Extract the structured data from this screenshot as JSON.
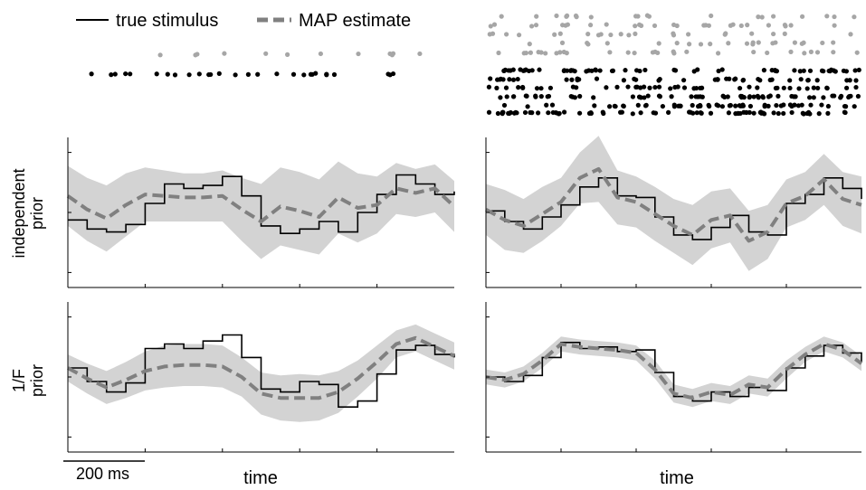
{
  "legend": [
    {
      "label": "true stimulus",
      "color": "#000000",
      "style": "solid"
    },
    {
      "label": "MAP estimate",
      "color": "#808080",
      "style": "dashed"
    }
  ],
  "row_labels": [
    {
      "line1": "independent",
      "line2": "prior"
    },
    {
      "line1": "1/F",
      "line2": "prior"
    }
  ],
  "xlabel": "time",
  "scalebar": {
    "label": "200 ms",
    "duration_ms": 200
  },
  "colors": {
    "band": "#d3d3d3",
    "map": "#808080",
    "true": "#000000",
    "spike_black": "#000000",
    "spike_gray": "#a6a6a6"
  },
  "chart_data": [
    {
      "type": "line",
      "panel": "independent prior, low spike rate",
      "x": [
        0,
        5,
        10,
        15,
        20,
        25,
        30,
        35,
        40,
        45,
        50,
        55,
        60,
        65,
        70,
        75,
        80,
        85,
        90,
        95,
        100
      ],
      "xlim": [
        0,
        100
      ],
      "ylim": [
        0,
        1
      ],
      "grid": false,
      "true": [
        0.45,
        0.39,
        0.37,
        0.42,
        0.56,
        0.69,
        0.66,
        0.68,
        0.74,
        0.61,
        0.41,
        0.36,
        0.39,
        0.44,
        0.37,
        0.5,
        0.62,
        0.75,
        0.69,
        0.62,
        0.64
      ],
      "map": [
        0.61,
        0.52,
        0.46,
        0.55,
        0.62,
        0.61,
        0.6,
        0.6,
        0.61,
        0.52,
        0.44,
        0.54,
        0.51,
        0.47,
        0.6,
        0.53,
        0.55,
        0.66,
        0.63,
        0.66,
        0.54
      ],
      "band_half": [
        0.2,
        0.21,
        0.22,
        0.21,
        0.18,
        0.17,
        0.16,
        0.16,
        0.17,
        0.21,
        0.25,
        0.26,
        0.26,
        0.25,
        0.24,
        0.23,
        0.19,
        0.17,
        0.16,
        0.16,
        0.17
      ]
    },
    {
      "type": "line",
      "panel": "independent prior, high spike rate",
      "x": [
        0,
        5,
        10,
        15,
        20,
        25,
        30,
        35,
        40,
        45,
        50,
        55,
        60,
        65,
        70,
        75,
        80,
        85,
        90,
        95,
        100
      ],
      "xlim": [
        0,
        100
      ],
      "ylim": [
        0,
        1
      ],
      "grid": false,
      "true": [
        0.51,
        0.44,
        0.39,
        0.47,
        0.55,
        0.67,
        0.73,
        0.61,
        0.6,
        0.47,
        0.35,
        0.32,
        0.4,
        0.48,
        0.37,
        0.35,
        0.56,
        0.62,
        0.73,
        0.66,
        0.59
      ],
      "map": [
        0.52,
        0.45,
        0.41,
        0.49,
        0.57,
        0.73,
        0.79,
        0.6,
        0.57,
        0.49,
        0.41,
        0.35,
        0.45,
        0.48,
        0.31,
        0.37,
        0.56,
        0.61,
        0.72,
        0.59,
        0.55
      ],
      "band_half": [
        0.17,
        0.2,
        0.18,
        0.18,
        0.16,
        0.17,
        0.22,
        0.18,
        0.17,
        0.18,
        0.18,
        0.2,
        0.19,
        0.18,
        0.2,
        0.18,
        0.16,
        0.16,
        0.17,
        0.18,
        0.19
      ]
    },
    {
      "type": "line",
      "panel": "1/F prior, low spike rate",
      "x": [
        0,
        5,
        10,
        15,
        20,
        25,
        30,
        35,
        40,
        45,
        50,
        55,
        60,
        65,
        70,
        75,
        80,
        85,
        90,
        95,
        100
      ],
      "xlim": [
        0,
        100
      ],
      "ylim": [
        0,
        1
      ],
      "grid": false,
      "true": [
        0.56,
        0.47,
        0.4,
        0.46,
        0.69,
        0.72,
        0.69,
        0.74,
        0.78,
        0.63,
        0.42,
        0.4,
        0.47,
        0.45,
        0.3,
        0.34,
        0.52,
        0.68,
        0.71,
        0.65,
        0.63
      ],
      "map": [
        0.56,
        0.49,
        0.43,
        0.48,
        0.54,
        0.57,
        0.58,
        0.58,
        0.57,
        0.5,
        0.39,
        0.36,
        0.36,
        0.36,
        0.4,
        0.49,
        0.6,
        0.72,
        0.76,
        0.7,
        0.64
      ],
      "band_half": [
        0.09,
        0.1,
        0.11,
        0.12,
        0.13,
        0.14,
        0.14,
        0.14,
        0.14,
        0.13,
        0.14,
        0.15,
        0.16,
        0.15,
        0.14,
        0.12,
        0.11,
        0.09,
        0.09,
        0.09,
        0.09
      ]
    },
    {
      "type": "line",
      "panel": "1/F prior, high spike rate",
      "x": [
        0,
        5,
        10,
        15,
        20,
        25,
        30,
        35,
        40,
        45,
        50,
        55,
        60,
        65,
        70,
        75,
        80,
        85,
        90,
        95,
        100
      ],
      "xlim": [
        0,
        100
      ],
      "ylim": [
        0,
        1
      ],
      "grid": false,
      "true": [
        0.5,
        0.47,
        0.51,
        0.63,
        0.73,
        0.69,
        0.7,
        0.67,
        0.68,
        0.53,
        0.37,
        0.34,
        0.4,
        0.37,
        0.43,
        0.41,
        0.56,
        0.64,
        0.71,
        0.66,
        0.6
      ],
      "map": [
        0.5,
        0.48,
        0.52,
        0.61,
        0.72,
        0.7,
        0.69,
        0.68,
        0.66,
        0.55,
        0.39,
        0.36,
        0.4,
        0.38,
        0.45,
        0.43,
        0.55,
        0.65,
        0.72,
        0.68,
        0.59
      ],
      "band_half": [
        0.05,
        0.05,
        0.05,
        0.05,
        0.05,
        0.05,
        0.05,
        0.05,
        0.05,
        0.06,
        0.06,
        0.06,
        0.06,
        0.06,
        0.06,
        0.06,
        0.06,
        0.05,
        0.05,
        0.05,
        0.05
      ]
    }
  ],
  "spike_rasters": [
    {
      "panel": "left, low rate",
      "black_count": 28,
      "gray_count": 12
    },
    {
      "panel": "right, high rate",
      "black_count": 330,
      "gray_count": 120
    }
  ]
}
